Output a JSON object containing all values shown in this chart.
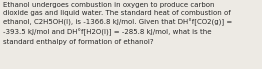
{
  "text": "Ethanol undergoes combustion in oxygen to produce carbon\ndioxide gas and liquid water. The standard heat of combustion of\nethanol, C2H5OH(l), is -1366.8 kJ/mol. Given that DH°f[CO2(g)] =\n-393.5 kJ/mol and DH°f[H2O(l)] = -285.8 kJ/mol, what is the\nstandard enthalpy of formation of ethanol?",
  "background_color": "#edeae4",
  "text_color": "#2a2a2a",
  "font_size": 5.05,
  "figwidth": 2.62,
  "figheight": 0.69,
  "dpi": 100
}
